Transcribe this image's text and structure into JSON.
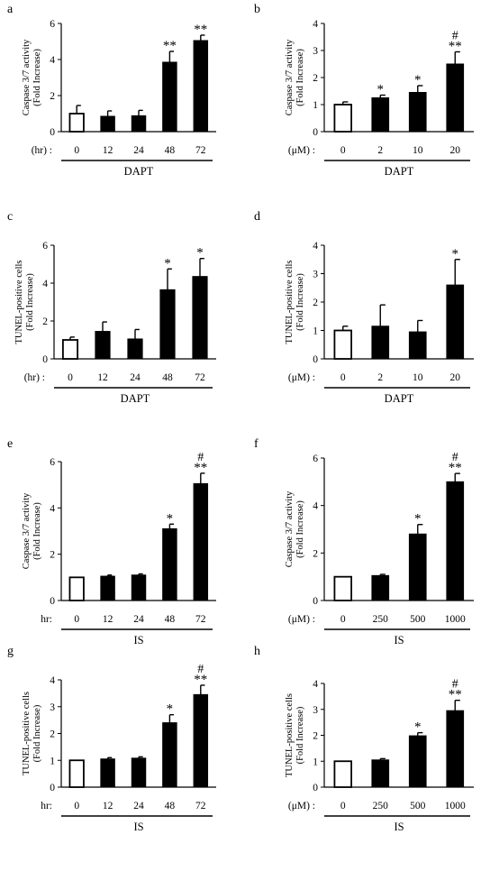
{
  "chart_data": [
    {
      "panel": "a",
      "type": "bar",
      "ylabel": [
        "Caspase 3/7 activity",
        "(Fold Increase)"
      ],
      "unit_label": "(hr) :",
      "group_label": "DAPT",
      "categories": [
        "0",
        "12",
        "24",
        "48",
        "72"
      ],
      "values": [
        1.0,
        0.85,
        0.88,
        3.85,
        5.05
      ],
      "errors": [
        0.45,
        0.3,
        0.3,
        0.6,
        0.3
      ],
      "annotations": [
        "",
        "",
        "",
        "**",
        "**"
      ],
      "hash": [
        "",
        "",
        "",
        "",
        ""
      ],
      "ylim": [
        0,
        6
      ],
      "yticks": [
        0,
        2,
        4,
        6
      ],
      "bar_colors": [
        "white",
        "black",
        "black",
        "black",
        "black"
      ]
    },
    {
      "panel": "b",
      "type": "bar",
      "ylabel": [
        "Caspase 3/7 activity",
        "(Fold Increase)"
      ],
      "unit_label": "(μM) :",
      "group_label": "DAPT",
      "categories": [
        "0",
        "2",
        "10",
        "20"
      ],
      "values": [
        1.0,
        1.25,
        1.45,
        2.5
      ],
      "errors": [
        0.1,
        0.1,
        0.25,
        0.45
      ],
      "annotations": [
        "",
        "*",
        "*",
        "**"
      ],
      "hash": [
        "",
        "",
        "",
        "#"
      ],
      "ylim": [
        0,
        4
      ],
      "yticks": [
        0,
        1,
        2,
        3,
        4
      ],
      "bar_colors": [
        "white",
        "black",
        "black",
        "black"
      ]
    },
    {
      "panel": "c",
      "type": "bar",
      "ylabel": [
        "TUNEL-positive cells",
        "(Fold Increase)"
      ],
      "unit_label": "(hr) :",
      "group_label": "DAPT",
      "categories": [
        "0",
        "12",
        "24",
        "48",
        "72"
      ],
      "values": [
        1.0,
        1.45,
        1.05,
        3.65,
        4.35
      ],
      "errors": [
        0.15,
        0.5,
        0.5,
        1.1,
        0.95
      ],
      "annotations": [
        "",
        "",
        "",
        "*",
        "*"
      ],
      "hash": [
        "",
        "",
        "",
        "",
        ""
      ],
      "ylim": [
        0,
        6
      ],
      "yticks": [
        0,
        2,
        4,
        6
      ],
      "bar_colors": [
        "white",
        "black",
        "black",
        "black",
        "black"
      ]
    },
    {
      "panel": "d",
      "type": "bar",
      "ylabel": [
        "TUNEL-positive cells",
        "(Fold Increase)"
      ],
      "unit_label": "(μM) :",
      "group_label": "DAPT",
      "categories": [
        "0",
        "2",
        "10",
        "20"
      ],
      "values": [
        1.0,
        1.15,
        0.95,
        2.6
      ],
      "errors": [
        0.15,
        0.75,
        0.4,
        0.9
      ],
      "annotations": [
        "",
        "",
        "",
        "*"
      ],
      "hash": [
        "",
        "",
        "",
        ""
      ],
      "ylim": [
        0,
        4
      ],
      "yticks": [
        0,
        1,
        2,
        3,
        4
      ],
      "bar_colors": [
        "white",
        "black",
        "black",
        "black"
      ]
    },
    {
      "panel": "e",
      "type": "bar",
      "ylabel": [
        "Caspase 3/7 activity",
        "(Fold Increase)"
      ],
      "unit_label": "hr:",
      "group_label": "IS",
      "categories": [
        "0",
        "12",
        "24",
        "48",
        "72"
      ],
      "values": [
        1.0,
        1.05,
        1.1,
        3.1,
        5.05
      ],
      "errors": [
        0.0,
        0.05,
        0.05,
        0.2,
        0.45
      ],
      "annotations": [
        "",
        "",
        "",
        "*",
        "**"
      ],
      "hash": [
        "",
        "",
        "",
        "",
        "#"
      ],
      "ylim": [
        0,
        6
      ],
      "yticks": [
        0,
        2,
        4,
        6
      ],
      "bar_colors": [
        "white",
        "black",
        "black",
        "black",
        "black"
      ]
    },
    {
      "panel": "f",
      "type": "bar",
      "ylabel": [
        "Caspase 3/7 activity",
        "(Fold Increase)"
      ],
      "unit_label": "(μM) :",
      "group_label": "IS",
      "categories": [
        "0",
        "250",
        "500",
        "1000"
      ],
      "values": [
        1.0,
        1.05,
        2.8,
        5.0
      ],
      "errors": [
        0.0,
        0.05,
        0.4,
        0.35
      ],
      "annotations": [
        "",
        "",
        "*",
        "**"
      ],
      "hash": [
        "",
        "",
        "",
        "#"
      ],
      "ylim": [
        0,
        6
      ],
      "yticks": [
        0,
        2,
        4,
        6
      ],
      "bar_colors": [
        "white",
        "black",
        "black",
        "black"
      ]
    },
    {
      "panel": "g",
      "type": "bar",
      "ylabel": [
        "TUNEL-positive cells",
        "(Fold Increase)"
      ],
      "unit_label": "hr:",
      "group_label": "IS",
      "categories": [
        "0",
        "12",
        "24",
        "48",
        "72"
      ],
      "values": [
        1.0,
        1.05,
        1.08,
        2.4,
        3.45
      ],
      "errors": [
        0.0,
        0.05,
        0.05,
        0.3,
        0.35
      ],
      "annotations": [
        "",
        "",
        "",
        "*",
        "**"
      ],
      "hash": [
        "",
        "",
        "",
        "",
        "#"
      ],
      "ylim": [
        0,
        4
      ],
      "yticks": [
        0,
        1,
        2,
        3,
        4
      ],
      "bar_colors": [
        "white",
        "black",
        "black",
        "black",
        "black"
      ]
    },
    {
      "panel": "h",
      "type": "bar",
      "ylabel": [
        "TUNEL-positive cells",
        "(Fold Increase)"
      ],
      "unit_label": "(μM) :",
      "group_label": "IS",
      "categories": [
        "0",
        "250",
        "500",
        "1000"
      ],
      "values": [
        1.0,
        1.05,
        1.98,
        2.95
      ],
      "errors": [
        0.0,
        0.05,
        0.12,
        0.4
      ],
      "annotations": [
        "",
        "",
        "*",
        "**"
      ],
      "hash": [
        "",
        "",
        "",
        "#"
      ],
      "ylim": [
        0,
        4
      ],
      "yticks": [
        0,
        1,
        2,
        3,
        4
      ],
      "bar_colors": [
        "white",
        "black",
        "black",
        "black"
      ]
    }
  ]
}
